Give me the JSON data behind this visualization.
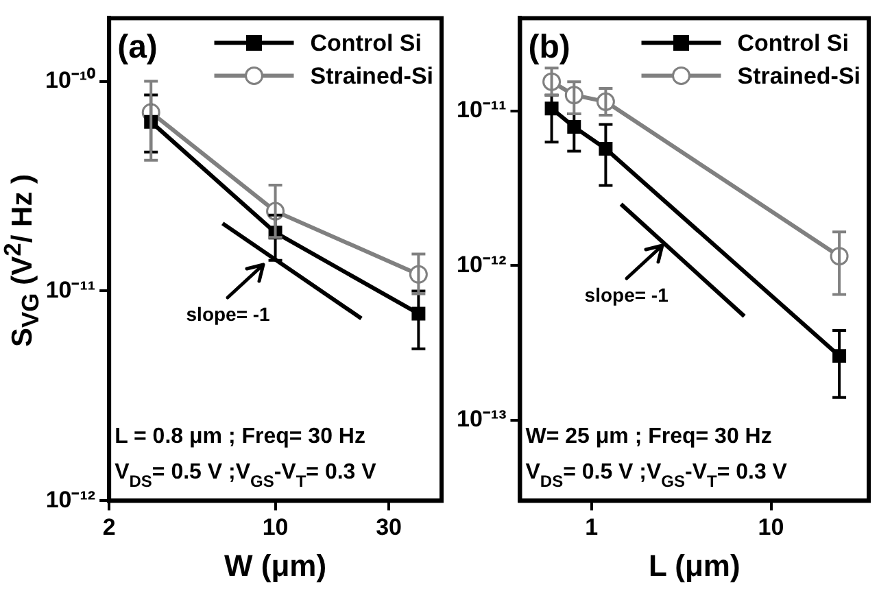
{
  "chart_data": [
    {
      "type": "line",
      "title": "(a)",
      "xlabel": "W (μm)",
      "ylabel": "S$_{VG}$ (V$^{2}$/ Hz )",
      "log": "xy",
      "grid": false,
      "legend": "top right",
      "line_style": "solid",
      "xlim": [
        2,
        50
      ],
      "xticks": [
        2,
        10,
        30
      ],
      "ylim": [
        1e-12,
        2e-10
      ],
      "yticks": [
        {
          "value": 1e-12,
          "label": "10⁻¹²"
        },
        {
          "value": 1e-11,
          "label": "10⁻¹¹"
        },
        {
          "value": 1e-10,
          "label": "10⁻¹⁰"
        }
      ],
      "series": [
        {
          "name": "Control Si",
          "color": "#000000",
          "marker": "square",
          "x": [
            3,
            10,
            40
          ],
          "values": [
            6.4e-11,
            1.9e-11,
            7.8e-12
          ],
          "errors": [
            [
              4.6e-11,
              8.6e-11
            ],
            [
              1.4e-11,
              2.3e-11
            ],
            [
              5.3e-12,
              1e-11
            ]
          ]
        },
        {
          "name": "Strained-Si",
          "color": "#808080",
          "marker": "circle",
          "x": [
            3,
            10,
            40
          ],
          "values": [
            7.1e-11,
            2.4e-11,
            1.2e-11
          ],
          "errors": [
            [
              4.2e-11,
              1e-10
            ],
            [
              1.8e-11,
              3.2e-11
            ],
            [
              9.7e-12,
              1.5e-11
            ]
          ]
        },
        {
          "color": "#000000",
          "marker": "none",
          "x": [
            6,
            23
          ],
          "values": [
            2.1e-11,
            7.4e-12
          ]
        }
      ],
      "annotations": [
        "slope= -1",
        "L = 0.8 μm ; Freq= 30 Hz",
        "V$_{DS}$= 0.5 V ;V$_{GS}$-V$_{T}$= 0.3 V"
      ]
    },
    {
      "type": "line",
      "title": "(b)",
      "xlabel": "L (μm)",
      "log": "xy",
      "grid": false,
      "legend": "top right",
      "line_style": "solid",
      "xlim": [
        0.4,
        35
      ],
      "xticks": [
        1,
        10
      ],
      "ylim": [
        3e-14,
        4e-11
      ],
      "yticks": [
        {
          "value": 1e-13,
          "label": "10⁻¹³"
        },
        {
          "value": 1e-12,
          "label": "10⁻¹²"
        },
        {
          "value": 1e-11,
          "label": "10⁻¹¹"
        }
      ],
      "series": [
        {
          "name": "Control Si",
          "color": "#000000",
          "marker": "square",
          "x": [
            0.6,
            0.8,
            1.2,
            24
          ],
          "values": [
            1.04e-11,
            7.9e-12,
            5.7e-12,
            2.6e-13
          ],
          "errors": [
            [
              6.3e-12,
              1.27e-11
            ],
            [
              5.5e-12,
              9.6e-12
            ],
            [
              3.3e-12,
              8.2e-12
            ],
            [
              1.4e-13,
              3.8e-13
            ]
          ]
        },
        {
          "name": "Strained-Si",
          "color": "#808080",
          "marker": "circle",
          "x": [
            0.6,
            0.8,
            1.2,
            24
          ],
          "values": [
            1.55e-11,
            1.27e-11,
            1.15e-11,
            1.15e-12
          ],
          "errors": [
            [
              1.27e-11,
              1.9e-11
            ],
            [
              9.6e-12,
              1.55e-11
            ],
            [
              9.4e-12,
              1.4e-11
            ],
            [
              6.5e-13,
              1.65e-12
            ]
          ]
        },
        {
          "color": "#000000",
          "marker": "none",
          "x": [
            1.46,
            7.1
          ],
          "values": [
            2.5e-12,
            4.7e-13
          ]
        }
      ],
      "annotations": [
        "slope= -1",
        "W= 25 μm ; Freq= 30 Hz",
        "V$_{DS}$= 0.5 V ;V$_{GS}$-V$_{T}$= 0.3 V"
      ]
    }
  ]
}
